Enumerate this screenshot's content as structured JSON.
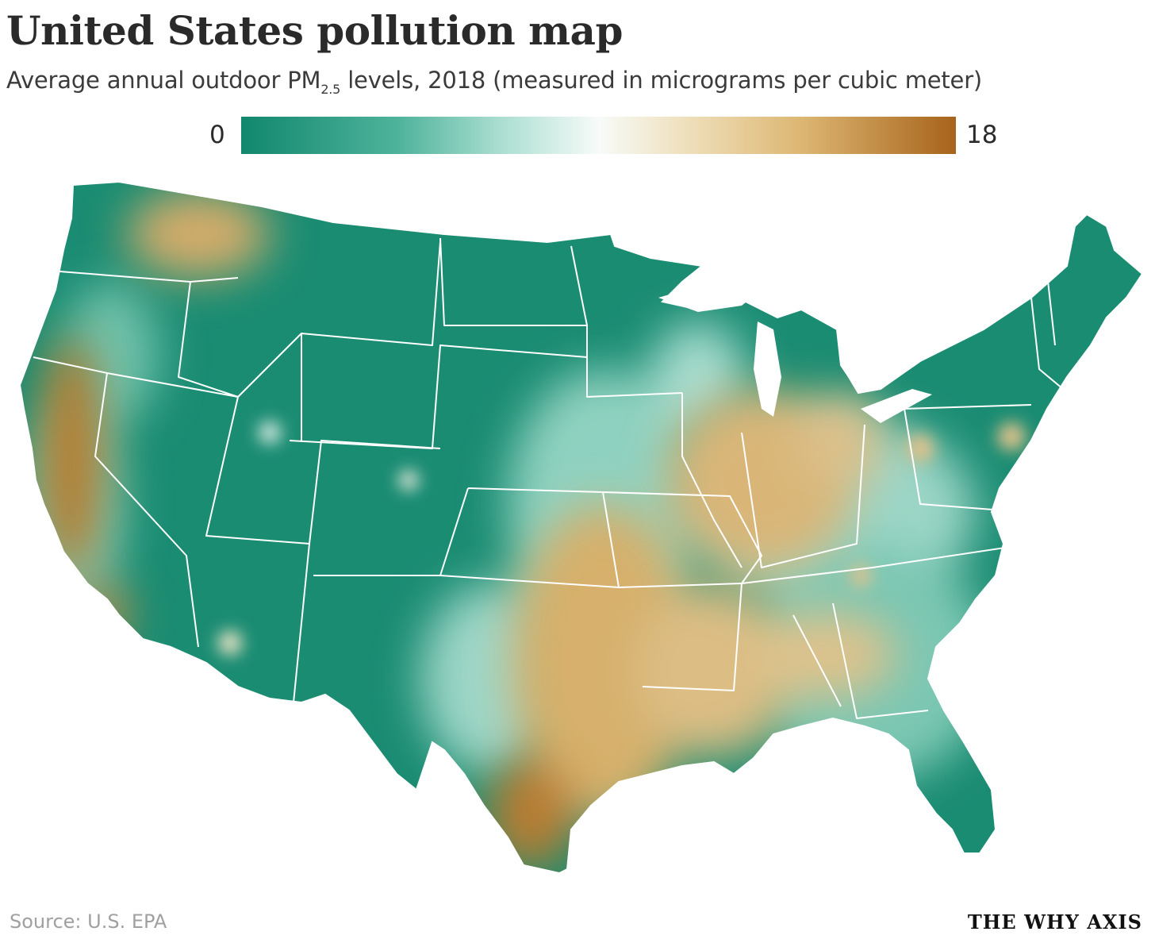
{
  "title": "United States pollution map",
  "subtitle": {
    "before": "Average annual outdoor PM",
    "subscript": "2.5",
    "after": " levels, 2018 (measured in micrograms per cubic meter)"
  },
  "legend": {
    "min_label": "0",
    "max_label": "18",
    "colors": [
      "#11876e",
      "#4fb39b",
      "#a9ddd0",
      "#f7fbf9",
      "#efe0bd",
      "#ddb874",
      "#a7631b"
    ]
  },
  "map": {
    "region": "Contiguous United States",
    "base_color": "#1a8c72",
    "border_color": "#ffffff",
    "high_pollution_color": "#c9914a",
    "low_pollution_color": "#1a8c72"
  },
  "footer": {
    "source": "Source: U.S. EPA",
    "brand": "THE WHY AXIS"
  }
}
